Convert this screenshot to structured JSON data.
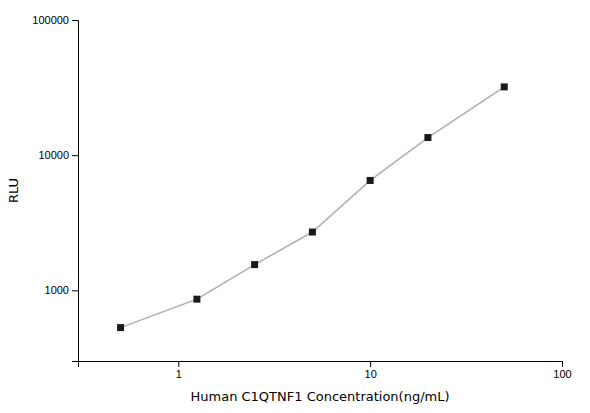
{
  "chart_data": {
    "type": "line",
    "x": [
      0.5,
      1.25,
      2.5,
      5,
      10,
      20,
      50
    ],
    "values": [
      530,
      860,
      1550,
      2700,
      6500,
      13500,
      32000
    ],
    "xlabel": "Human C1QTNF1 Concentration(ng/mL)",
    "ylabel": "RLU",
    "xlim": [
      0.3,
      100
    ],
    "ylim": [
      300,
      100000
    ],
    "xticks": [
      1,
      10,
      100
    ],
    "yticks": [
      1000,
      10000,
      100000
    ],
    "log": true,
    "color": "#1a1a1a",
    "marker": "square"
  }
}
